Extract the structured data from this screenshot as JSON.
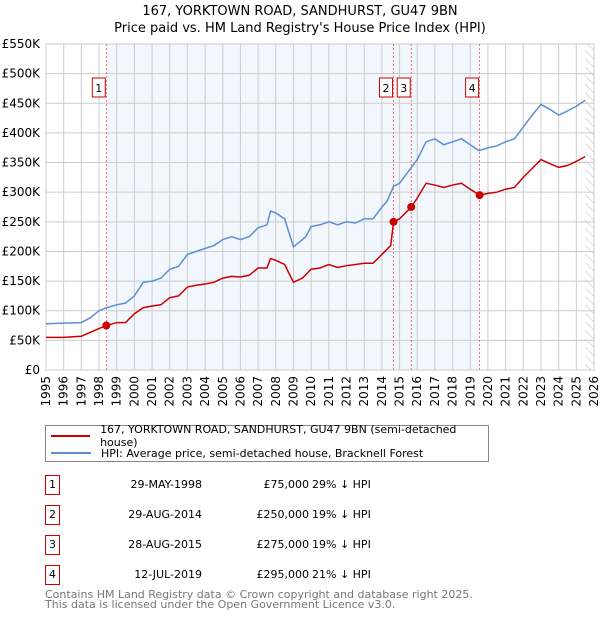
{
  "chart_data": {
    "type": "line",
    "title": "167, YORKTOWN ROAD, SANDHURST, GU47 9BN",
    "subtitle": "Price paid vs. HM Land Registry's House Price Index (HPI)",
    "xlim": [
      1995,
      2026
    ],
    "ylim": [
      0,
      550000
    ],
    "x_ticks": [
      "1995",
      "1996",
      "1997",
      "1998",
      "1999",
      "2000",
      "2001",
      "2002",
      "2003",
      "2004",
      "2005",
      "2006",
      "2007",
      "2008",
      "2009",
      "2010",
      "2011",
      "2012",
      "2013",
      "2014",
      "2015",
      "2016",
      "2017",
      "2018",
      "2019",
      "2020",
      "2021",
      "2022",
      "2023",
      "2024",
      "2025",
      "2026"
    ],
    "y_ticks": [
      {
        "v": 0,
        "label": "£0"
      },
      {
        "v": 50000,
        "label": "£50K"
      },
      {
        "v": 100000,
        "label": "£100K"
      },
      {
        "v": 150000,
        "label": "£150K"
      },
      {
        "v": 200000,
        "label": "£200K"
      },
      {
        "v": 250000,
        "label": "£250K"
      },
      {
        "v": 300000,
        "label": "£300K"
      },
      {
        "v": 350000,
        "label": "£350K"
      },
      {
        "v": 400000,
        "label": "£400K"
      },
      {
        "v": 450000,
        "label": "£450K"
      },
      {
        "v": 500000,
        "label": "£500K"
      },
      {
        "v": 550000,
        "label": "£550K"
      }
    ],
    "grid": true,
    "series": [
      {
        "name": "167, YORKTOWN ROAD, SANDHURST, GU47 9BN (semi-detached house)",
        "color": "#cc0000",
        "x": [
          1995,
          1996,
          1997,
          1998,
          1998.41,
          1999,
          1999.5,
          2000,
          2000.5,
          2001,
          2001.5,
          2002,
          2002.5,
          2003,
          2003.5,
          2004,
          2004.5,
          2005,
          2005.5,
          2006,
          2006.5,
          2007,
          2007.5,
          2007.7,
          2008,
          2008.5,
          2009,
          2009.5,
          2010,
          2010.5,
          2011,
          2011.5,
          2012,
          2012.5,
          2013,
          2013.5,
          2014,
          2014.5,
          2014.66,
          2015,
          2015.66,
          2016,
          2016.5,
          2017,
          2017.5,
          2018,
          2018.5,
          2019,
          2019.53,
          2020,
          2020.5,
          2021,
          2021.5,
          2022,
          2022.5,
          2023,
          2023.5,
          2024,
          2024.5,
          2025,
          2025.5
        ],
        "y": [
          55000,
          55000,
          57000,
          70000,
          75000,
          80000,
          80000,
          95000,
          105000,
          108000,
          110000,
          122000,
          125000,
          140000,
          143000,
          145000,
          148000,
          155000,
          158000,
          157000,
          160000,
          172000,
          172000,
          188000,
          185000,
          178000,
          148000,
          155000,
          170000,
          172000,
          178000,
          173000,
          176000,
          178000,
          180000,
          180000,
          195000,
          210000,
          250000,
          255000,
          275000,
          290000,
          315000,
          312000,
          308000,
          312000,
          315000,
          305000,
          295000,
          298000,
          300000,
          305000,
          308000,
          325000,
          340000,
          355000,
          348000,
          342000,
          345000,
          352000,
          360000
        ]
      },
      {
        "name": "HPI: Average price, semi-detached house, Bracknell Forest",
        "color": "#5b8fd4",
        "x": [
          1995,
          1996,
          1997,
          1997.5,
          1998,
          1998.41,
          1999,
          1999.5,
          2000,
          2000.5,
          2001,
          2001.5,
          2002,
          2002.5,
          2003,
          2003.5,
          2004,
          2004.5,
          2005,
          2005.5,
          2006,
          2006.5,
          2007,
          2007.5,
          2007.7,
          2008,
          2008.5,
          2009,
          2009.3,
          2009.7,
          2010,
          2010.5,
          2011,
          2011.5,
          2012,
          2012.5,
          2013,
          2013.5,
          2014,
          2014.3,
          2014.66,
          2015,
          2015.5,
          2016,
          2016.5,
          2017,
          2017.5,
          2018,
          2018.5,
          2019,
          2019.5,
          2020,
          2020.5,
          2021,
          2021.5,
          2022,
          2022.5,
          2023,
          2023.5,
          2024,
          2024.5,
          2025,
          2025.5
        ],
        "y": [
          78000,
          79000,
          80000,
          88000,
          100000,
          105000,
          110000,
          113000,
          125000,
          148000,
          150000,
          155000,
          170000,
          175000,
          195000,
          200000,
          205000,
          210000,
          220000,
          225000,
          220000,
          225000,
          240000,
          245000,
          268000,
          265000,
          255000,
          208000,
          215000,
          225000,
          242000,
          245000,
          250000,
          245000,
          250000,
          248000,
          255000,
          255000,
          275000,
          285000,
          310000,
          315000,
          335000,
          355000,
          385000,
          390000,
          380000,
          385000,
          390000,
          380000,
          370000,
          375000,
          378000,
          385000,
          390000,
          410000,
          430000,
          448000,
          440000,
          430000,
          437000,
          445000,
          455000
        ]
      }
    ],
    "sales": [
      {
        "n": "1",
        "x": 1998.41,
        "date": "29-MAY-1998",
        "price": "£75,000",
        "value": 75000,
        "hpi": "29% ↓ HPI"
      },
      {
        "n": "2",
        "x": 2014.66,
        "date": "29-AUG-2014",
        "price": "£250,000",
        "value": 250000,
        "hpi": "19% ↓ HPI"
      },
      {
        "n": "3",
        "x": 2015.66,
        "date": "28-AUG-2015",
        "price": "£275,000",
        "value": 275000,
        "hpi": "19% ↓ HPI"
      },
      {
        "n": "4",
        "x": 2019.53,
        "date": "12-JUL-2019",
        "price": "£295,000",
        "value": 295000,
        "hpi": "21% ↓ HPI"
      }
    ],
    "shaded_range": [
      1998.41,
      2019.53
    ],
    "hatched_from": 2025.5,
    "legend_placement": "below"
  },
  "footer": {
    "line1": "Contains HM Land Registry data © Crown copyright and database right 2025.",
    "line2": "This data is licensed under the Open Government Licence v3.0."
  }
}
